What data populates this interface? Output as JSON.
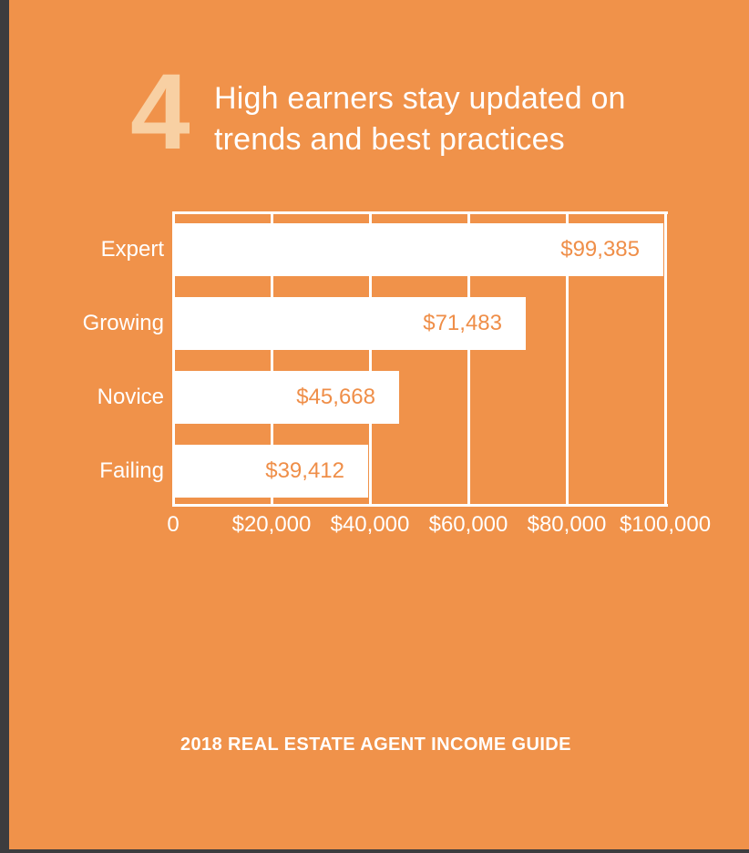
{
  "page": {
    "background_color": "#F0924A",
    "edge_color": "#3C3C3E",
    "number_color": "#F8D0A3",
    "bar_color": "#FFFFFF",
    "value_label_color": "#EF8E48"
  },
  "header": {
    "section_number": "4",
    "title_line1": "High earners stay updated on",
    "title_line2": "trends and best practices"
  },
  "chart_data": {
    "type": "bar",
    "orientation": "horizontal",
    "title": "",
    "xlabel": "",
    "ylabel": "",
    "categories": [
      "Expert",
      "Growing",
      "Novice",
      "Failing"
    ],
    "values": [
      99385,
      71483,
      45668,
      39412
    ],
    "value_labels": [
      "$99,385",
      "$71,483",
      "$45,668",
      "$39,412"
    ],
    "xlim": [
      0,
      100000
    ],
    "x_ticks": [
      0,
      20000,
      40000,
      60000,
      80000,
      100000
    ],
    "x_tick_labels": [
      "0",
      "$20,000",
      "$40,000",
      "$60,000",
      "$80,000",
      "$100,000"
    ],
    "grid": true,
    "gridline_color": "#FFFFFF",
    "bar_color": "#FFFFFF",
    "value_label_position": "inside-right",
    "legend": "none"
  },
  "footer": {
    "caption": "2018 REAL ESTATE AGENT INCOME GUIDE"
  }
}
